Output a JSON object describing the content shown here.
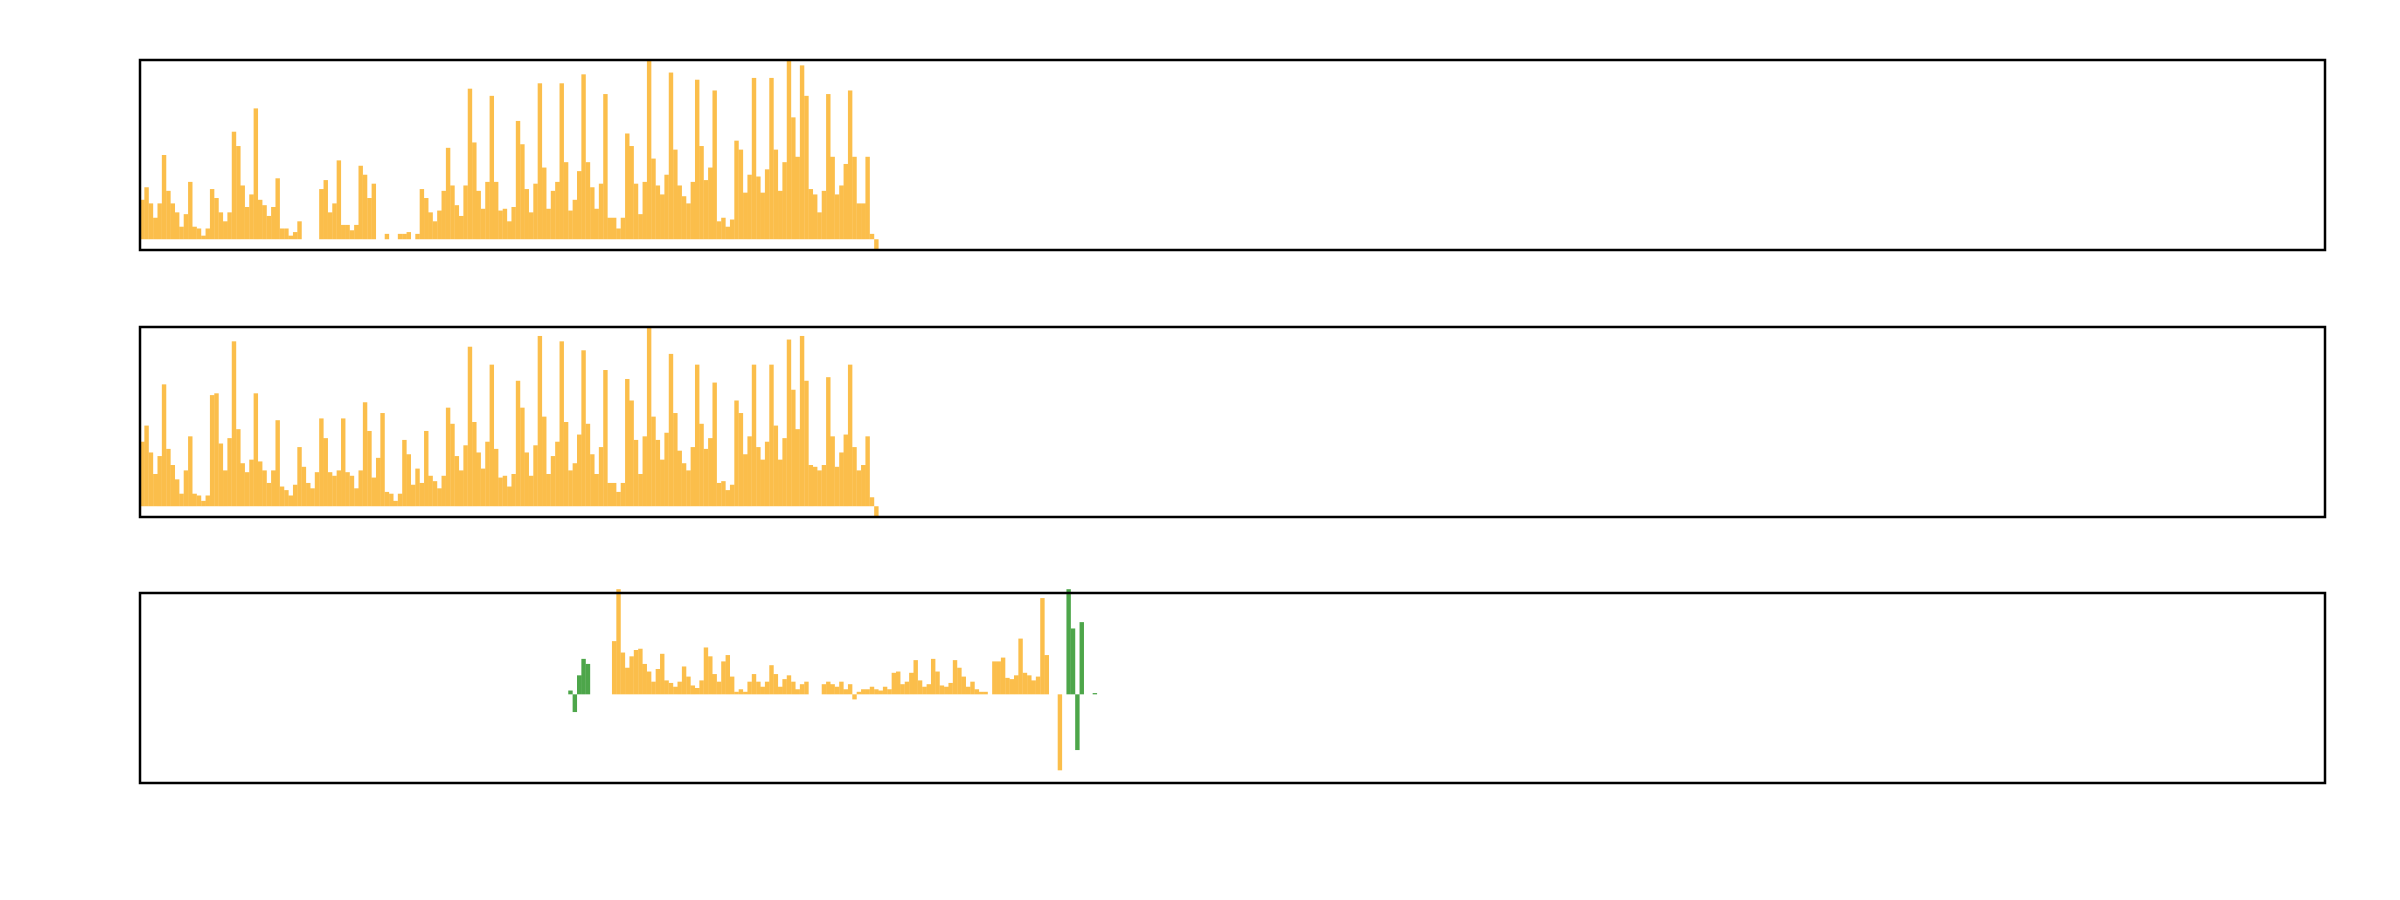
{
  "figure": {
    "background": "#ffffff",
    "frame_color": "#000000",
    "colors": {
      "orange": "#FBBE4B",
      "green": "#4DA64A"
    }
  },
  "chart_data": [
    {
      "type": "bar",
      "title": "",
      "xlabel": "",
      "ylabel": "",
      "xlim": [
        0,
        500
      ],
      "ylim": [
        -0.06,
        1
      ],
      "grid": false,
      "ticks_visible": false,
      "series": [
        {
          "color": "orange",
          "x0": 0,
          "values": [
            0.22,
            0.29,
            0.2,
            0.12,
            0.2,
            0.47,
            0.27,
            0.2,
            0.15,
            0.07,
            0.14,
            0.32,
            0.07,
            0.06,
            0.02,
            0.06,
            0.28,
            0.23,
            0.15,
            0.1,
            0.15,
            0.6,
            0.52,
            0.3,
            0.18,
            0.25,
            0.73,
            0.22,
            0.19,
            0.13,
            0.18,
            0.34,
            0.06,
            0.06,
            0.02,
            0.04,
            0.1,
            0.0,
            0.0,
            0.0,
            0.0,
            0.28,
            0.33,
            0.15,
            0.2,
            0.44,
            0.08,
            0.08,
            0.05,
            0.08,
            0.41,
            0.36,
            0.23,
            0.31,
            0.0,
            0.0,
            0.03,
            0.0,
            0.0,
            0.03,
            0.03,
            0.04,
            0.0,
            0.03,
            0.28,
            0.23,
            0.15,
            0.1,
            0.16,
            0.27,
            0.51,
            0.3,
            0.19,
            0.13,
            0.3,
            0.84,
            0.54,
            0.27,
            0.17,
            0.32,
            0.8,
            0.32,
            0.16,
            0.17,
            0.1,
            0.18,
            0.66,
            0.53,
            0.28,
            0.15,
            0.31,
            0.87,
            0.4,
            0.17,
            0.27,
            0.32,
            0.87,
            0.43,
            0.16,
            0.22,
            0.38,
            0.92,
            0.43,
            0.29,
            0.17,
            0.31,
            0.81,
            0.12,
            0.12,
            0.06,
            0.12,
            0.59,
            0.52,
            0.31,
            0.14,
            0.32,
            1.0,
            0.45,
            0.3,
            0.25,
            0.36,
            0.93,
            0.5,
            0.3,
            0.24,
            0.2,
            0.32,
            0.89,
            0.52,
            0.33,
            0.4,
            0.83,
            0.1,
            0.12,
            0.07,
            0.11,
            0.55,
            0.5,
            0.26,
            0.36,
            0.9,
            0.35,
            0.26,
            0.39,
            0.9,
            0.5,
            0.27,
            0.43,
            1.0,
            0.68,
            0.46,
            0.97,
            0.8,
            0.28,
            0.25,
            0.15,
            0.27,
            0.81,
            0.46,
            0.25,
            0.3,
            0.42,
            0.83,
            0.46,
            0.2,
            0.2,
            0.46,
            0.03,
            -0.06
          ]
        }
      ]
    },
    {
      "type": "bar",
      "title": "",
      "xlabel": "",
      "ylabel": "",
      "xlim": [
        0,
        500
      ],
      "ylim": [
        -0.06,
        1
      ],
      "grid": false,
      "ticks_visible": false,
      "series": [
        {
          "color": "orange",
          "x0": 0,
          "values": [
            0.36,
            0.45,
            0.3,
            0.18,
            0.28,
            0.68,
            0.32,
            0.23,
            0.15,
            0.07,
            0.2,
            0.39,
            0.07,
            0.06,
            0.03,
            0.06,
            0.62,
            0.63,
            0.35,
            0.2,
            0.38,
            0.92,
            0.43,
            0.24,
            0.19,
            0.26,
            0.63,
            0.25,
            0.2,
            0.13,
            0.2,
            0.48,
            0.11,
            0.09,
            0.06,
            0.12,
            0.33,
            0.22,
            0.13,
            0.1,
            0.19,
            0.49,
            0.38,
            0.19,
            0.17,
            0.2,
            0.49,
            0.19,
            0.17,
            0.1,
            0.2,
            0.58,
            0.42,
            0.16,
            0.27,
            0.52,
            0.08,
            0.07,
            0.03,
            0.07,
            0.37,
            0.29,
            0.12,
            0.21,
            0.13,
            0.42,
            0.17,
            0.14,
            0.1,
            0.17,
            0.55,
            0.46,
            0.28,
            0.2,
            0.34,
            0.89,
            0.47,
            0.3,
            0.21,
            0.36,
            0.79,
            0.32,
            0.16,
            0.17,
            0.11,
            0.18,
            0.7,
            0.55,
            0.3,
            0.17,
            0.34,
            0.95,
            0.5,
            0.18,
            0.28,
            0.36,
            0.92,
            0.47,
            0.2,
            0.24,
            0.4,
            0.87,
            0.46,
            0.29,
            0.18,
            0.33,
            0.76,
            0.13,
            0.13,
            0.08,
            0.13,
            0.71,
            0.59,
            0.37,
            0.18,
            0.39,
            1.0,
            0.5,
            0.37,
            0.26,
            0.41,
            0.85,
            0.52,
            0.31,
            0.24,
            0.2,
            0.33,
            0.79,
            0.46,
            0.32,
            0.38,
            0.69,
            0.13,
            0.14,
            0.09,
            0.12,
            0.59,
            0.52,
            0.29,
            0.39,
            0.79,
            0.33,
            0.26,
            0.36,
            0.79,
            0.45,
            0.26,
            0.38,
            0.93,
            0.65,
            0.43,
            0.95,
            0.7,
            0.23,
            0.22,
            0.2,
            0.23,
            0.72,
            0.39,
            0.22,
            0.3,
            0.4,
            0.79,
            0.33,
            0.2,
            0.23,
            0.39,
            0.05,
            -0.06
          ]
        }
      ]
    },
    {
      "type": "bar",
      "title": "",
      "xlabel": "",
      "ylabel": "",
      "xlim": [
        0,
        500
      ],
      "ylim": [
        -0.7,
        0.8
      ],
      "grid": false,
      "ticks_visible": false,
      "series": [
        {
          "color": "orange",
          "x0": 108,
          "values": [
            0.42,
            0.83,
            0.33,
            0.21,
            0.3,
            0.35,
            0.36,
            0.24,
            0.18,
            0.1,
            0.2,
            0.32,
            0.11,
            0.09,
            0.06,
            0.1,
            0.22,
            0.14,
            0.07,
            0.05,
            0.11,
            0.37,
            0.3,
            0.16,
            0.1,
            0.26,
            0.31,
            0.14,
            0.02,
            0.04,
            0.02,
            0.1,
            0.16,
            0.1,
            0.06,
            0.1,
            0.23,
            0.16,
            0.06,
            0.12,
            0.15,
            0.1,
            0.04,
            0.08,
            0.1,
            0.0,
            0.0,
            0.0,
            0.08,
            0.1,
            0.08,
            0.06,
            0.1,
            0.04,
            0.08,
            -0.04,
            0.02,
            0.04,
            0.04,
            0.06,
            0.04,
            0.03,
            0.06,
            0.04,
            0.17,
            0.18,
            0.08,
            0.1,
            0.17,
            0.27,
            0.11,
            0.06,
            0.08,
            0.28,
            0.18,
            0.07,
            0.06,
            0.09,
            0.27,
            0.21,
            0.14,
            0.06,
            0.1,
            0.04,
            0.02,
            0.02,
            0.0,
            0.26,
            0.26,
            0.29,
            0.13,
            0.12,
            0.15,
            0.44,
            0.17,
            0.15,
            0.11,
            0.14,
            0.76,
            0.31,
            0.0,
            0.0,
            -0.6
          ]
        },
        {
          "color": "green",
          "x0": 98,
          "values": [
            0.03,
            -0.14,
            0.15,
            0.28,
            0.24,
            0.0,
            0.0,
            0.0,
            0.0,
            0.0,
            0.0,
            0.0,
            0.0,
            0.0,
            0.0,
            0.0,
            0.0,
            0.0,
            0.0,
            0.0,
            0.0,
            0.0,
            0.0,
            0.0,
            0.0,
            0.0,
            0.0,
            0.0,
            0.0,
            0.0,
            0.0,
            0.0,
            0.0,
            0.0,
            0.0,
            0.0,
            0.0,
            0.0,
            0.0,
            0.0,
            0.0,
            0.0,
            0.0,
            0.0,
            0.0,
            0.0,
            0.0,
            0.0,
            0.0,
            0.0,
            0.0,
            0.0,
            0.0,
            0.0,
            0.0,
            0.0,
            0.0,
            0.0,
            0.0,
            0.0,
            0.0,
            0.0,
            0.0,
            0.0,
            0.0,
            0.0,
            0.0,
            0.0,
            0.0,
            0.0,
            0.0,
            0.0,
            0.0,
            0.0,
            0.0,
            0.0,
            0.0,
            0.0,
            0.0,
            0.0,
            0.0,
            0.0,
            0.0,
            0.0,
            0.0,
            0.0,
            0.0,
            0.0,
            0.0,
            0.0,
            0.0,
            0.0,
            0.0,
            0.0,
            0.0,
            0.0,
            0.0,
            0.0,
            0.0,
            0.0,
            0.0,
            0.0,
            0.0,
            0.0,
            0.0,
            0.0,
            0.0,
            0.0,
            0.0,
            0.0,
            0.0,
            0.0,
            0.0,
            0.0,
            0.83,
            0.52,
            -0.44,
            0.57,
            0.0,
            0.0,
            0.01
          ]
        }
      ]
    }
  ]
}
